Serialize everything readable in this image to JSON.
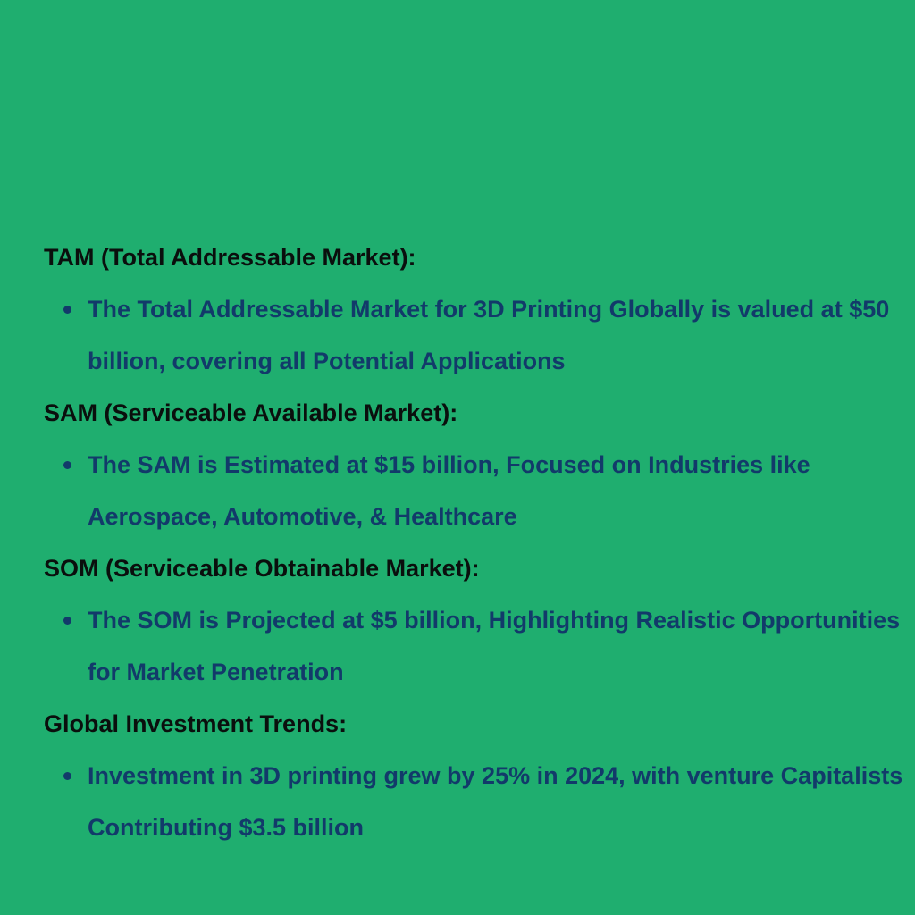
{
  "sections": [
    {
      "heading": "TAM (Total Addressable Market):",
      "bullet": "The Total Addressable Market for 3D Printing Globally is valued at $50 billion, covering all Potential Applications"
    },
    {
      "heading": "SAM (Serviceable Available Market):",
      "bullet": "The SAM is Estimated at $15 billion, Focused on Industries like Aerospace, Automotive, & Healthcare"
    },
    {
      "heading": "SOM (Serviceable Obtainable Market):",
      "bullet": "The SOM is Projected at $5 billion, Highlighting Realistic Opportunities for Market Penetration"
    },
    {
      "heading": "Global Investment Trends:",
      "bullet": "Investment in 3D printing grew by 25% in 2024, with venture Capitalists Contributing $3.5 billion"
    }
  ],
  "colors": {
    "background": "#1fae6f",
    "heading_text": "#0a0f0d",
    "bullet_text": "#123a6a"
  }
}
